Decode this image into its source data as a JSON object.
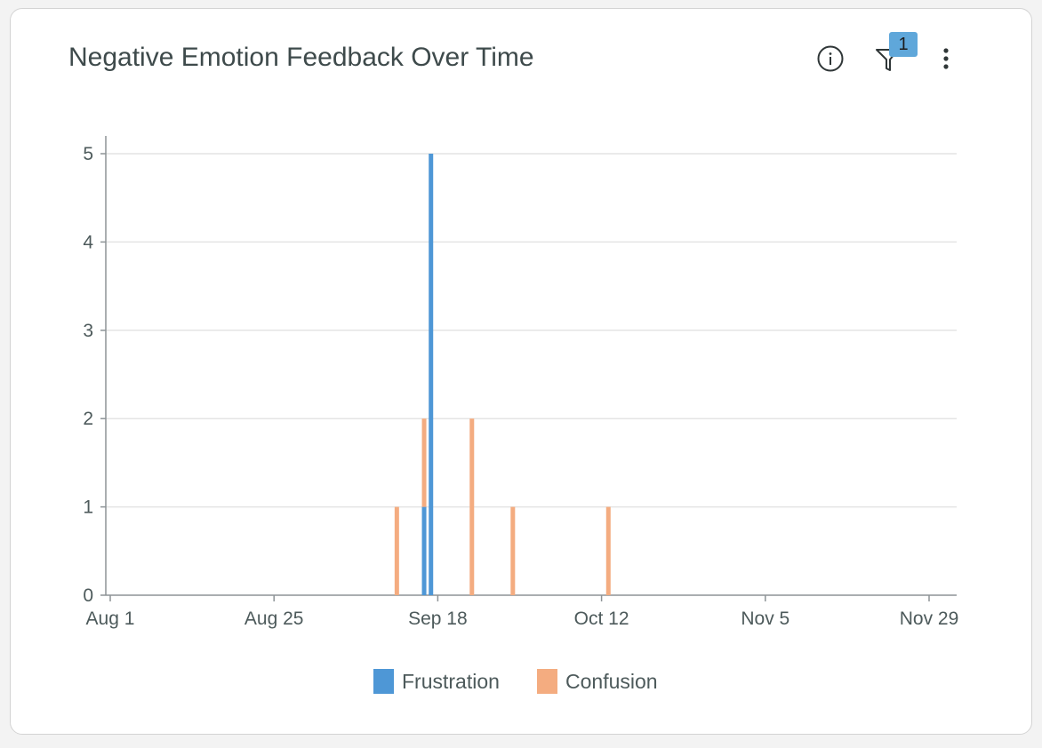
{
  "card": {
    "title": "Negative Emotion Feedback Over Time",
    "filter_badge": "1",
    "icons": [
      "info-icon",
      "filter-icon",
      "more-vertical-icon"
    ]
  },
  "colors": {
    "frustration": "#4e97d6",
    "confusion": "#f4ac80",
    "axis": "#8d9396",
    "grid": "#e4e4e4",
    "text": "#4d5a5b"
  },
  "chart_data": {
    "type": "bar",
    "stacked": true,
    "title": "Negative Emotion Feedback Over Time",
    "xlabel": "",
    "ylabel": "",
    "x_axis": {
      "type": "date",
      "range": [
        "2024-08-01",
        "2024-11-29"
      ],
      "tick_labels": [
        "Aug 1",
        "Aug 25",
        "Sep 18",
        "Oct 12",
        "Nov 5",
        "Nov 29"
      ],
      "tick_dates": [
        "2024-08-01",
        "2024-08-25",
        "2024-09-18",
        "2024-10-12",
        "2024-11-05",
        "2024-11-29"
      ]
    },
    "y_axis": {
      "range": [
        0,
        5
      ],
      "ticks": [
        0,
        1,
        2,
        3,
        4,
        5
      ]
    },
    "grid": true,
    "legend": "bottom",
    "series": [
      {
        "name": "Frustration",
        "color": "#4e97d6",
        "points": [
          {
            "x": "2024-09-16",
            "y": 1
          },
          {
            "x": "2024-09-17",
            "y": 5
          }
        ]
      },
      {
        "name": "Confusion",
        "color": "#f4ac80",
        "points": [
          {
            "x": "2024-09-12",
            "y": 1
          },
          {
            "x": "2024-09-16",
            "y": 1
          },
          {
            "x": "2024-09-23",
            "y": 2
          },
          {
            "x": "2024-09-29",
            "y": 1
          },
          {
            "x": "2024-10-13",
            "y": 1
          }
        ]
      }
    ]
  }
}
